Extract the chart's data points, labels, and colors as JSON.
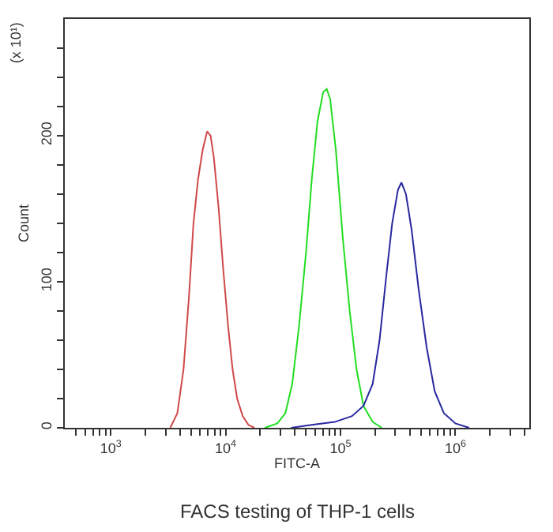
{
  "chart_data": {
    "type": "line",
    "title": "FACS testing of THP-1 cells",
    "xlabel": "FITC-A",
    "ylabel": "Count",
    "annotations": [
      "(x 10¹)"
    ],
    "log": "x",
    "marker": "none",
    "line_style": "solid",
    "xlim": [
      398,
      4400000
    ],
    "xticks": [
      {
        "value": 500,
        "label": null
      },
      {
        "value": 600,
        "label": null
      },
      {
        "value": 700,
        "label": null
      },
      {
        "value": 800,
        "label": null
      },
      {
        "value": 900,
        "label": null
      },
      {
        "value": 1000,
        "label": "10$^{3}$"
      },
      {
        "value": 2000,
        "label": null
      },
      {
        "value": 3000,
        "label": null
      },
      {
        "value": 4000,
        "label": null
      },
      {
        "value": 5000,
        "label": null
      },
      {
        "value": 6000,
        "label": null
      },
      {
        "value": 7000,
        "label": null
      },
      {
        "value": 8000,
        "label": null
      },
      {
        "value": 9000,
        "label": null
      },
      {
        "value": 10000,
        "label": "10$^{4}$"
      },
      {
        "value": 20000,
        "label": null
      },
      {
        "value": 30000,
        "label": null
      },
      {
        "value": 40000,
        "label": null
      },
      {
        "value": 50000,
        "label": null
      },
      {
        "value": 60000,
        "label": null
      },
      {
        "value": 70000,
        "label": null
      },
      {
        "value": 80000,
        "label": null
      },
      {
        "value": 90000,
        "label": null
      },
      {
        "value": 100000,
        "label": "10$^{5}$"
      },
      {
        "value": 200000,
        "label": null
      },
      {
        "value": 300000,
        "label": null
      },
      {
        "value": 400000,
        "label": null
      },
      {
        "value": 500000,
        "label": null
      },
      {
        "value": 600000,
        "label": null
      },
      {
        "value": 700000,
        "label": null
      },
      {
        "value": 800000,
        "label": null
      },
      {
        "value": 900000,
        "label": null
      },
      {
        "value": 1000000,
        "label": "10$^{6}$"
      },
      {
        "value": 2000000,
        "label": null
      },
      {
        "value": 3000000,
        "label": null
      },
      {
        "value": 4000000,
        "label": null
      }
    ],
    "ylim": [
      0,
      280
    ],
    "yticks": [
      0,
      {
        "value": 20,
        "label": null
      },
      {
        "value": 40,
        "label": null
      },
      {
        "value": 60,
        "label": null
      },
      {
        "value": 80,
        "label": null
      },
      100,
      {
        "value": 120,
        "label": null
      },
      {
        "value": 140,
        "label": null
      },
      {
        "value": 160,
        "label": null
      },
      {
        "value": 180,
        "label": null
      },
      200,
      {
        "value": 220,
        "label": null
      },
      {
        "value": 240,
        "label": null
      },
      {
        "value": 260,
        "label": null
      }
    ],
    "series": [
      {
        "color": "#d04848",
        "x": [
          3300,
          3800,
          4300,
          4800,
          5250,
          5750,
          6300,
          6900,
          7400,
          7900,
          8700,
          9500,
          10500,
          11500,
          12600,
          14100,
          15800,
          17800
        ],
        "values": [
          0,
          10,
          40,
          90,
          140,
          170,
          190,
          203,
          200,
          185,
          150,
          110,
          70,
          40,
          20,
          8,
          2,
          0
        ]
      },
      {
        "color": "#22dd22",
        "x": [
          21900,
          28200,
          33100,
          38000,
          43600,
          50100,
          56200,
          63100,
          70800,
          75900,
          81300,
          91200,
          104700,
          120200,
          138000,
          158500,
          190500,
          229100
        ],
        "values": [
          0,
          3,
          10,
          30,
          70,
          120,
          170,
          210,
          230,
          232,
          225,
          190,
          130,
          80,
          40,
          15,
          4,
          0
        ]
      },
      {
        "color": "#2828a0",
        "x": [
          37200,
          56200,
          89100,
          125900,
          158500,
          190500,
          218800,
          251200,
          281800,
          316200,
          338800,
          371500,
          416900,
          478600,
          562300,
          660700,
          794300,
          1000000,
          1318000
        ],
        "values": [
          0,
          2,
          4,
          8,
          15,
          30,
          60,
          105,
          140,
          163,
          168,
          160,
          135,
          95,
          55,
          25,
          10,
          3,
          0
        ]
      }
    ]
  }
}
